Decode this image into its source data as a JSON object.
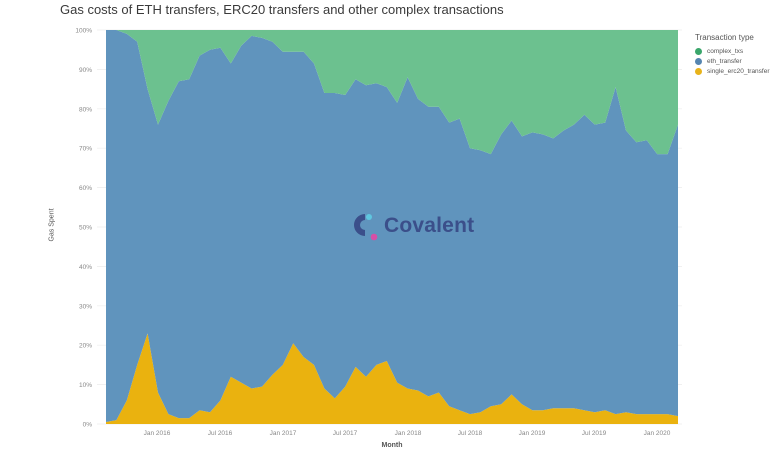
{
  "title": "Gas costs of ETH transfers, ERC20 transfers and other complex transactions",
  "legend": {
    "title": "Transaction type",
    "items": [
      {
        "label": "complex_txs",
        "color": "#6cc18f",
        "swatch": "#3aa66b"
      },
      {
        "label": "eth_transfer",
        "color": "#6094bd",
        "swatch": "#5585b0"
      },
      {
        "label": "single_erc20_transfer",
        "color": "#eab20f",
        "swatch": "#e8b31a"
      }
    ]
  },
  "watermark": {
    "text": "Covalent"
  },
  "chart_data": {
    "type": "area",
    "stacked": true,
    "normalized": true,
    "title": "Gas costs of ETH transfers, ERC20 transfers and other complex transactions",
    "xlabel": "Month",
    "ylabel": "Gas Spent",
    "ylim": [
      0,
      100
    ],
    "yticks": [
      "0%",
      "10%",
      "20%",
      "30%",
      "40%",
      "50%",
      "60%",
      "70%",
      "80%",
      "90%",
      "100%"
    ],
    "xticks": [
      "Jan 2016",
      "Jul 2016",
      "Jan 2017",
      "Jul 2017",
      "Jan 2018",
      "Jul 2018",
      "Jan 2019",
      "Jul 2019",
      "Jan 2020"
    ],
    "grid": true,
    "legend_position": "right",
    "x": [
      "2015-08",
      "2015-09",
      "2015-10",
      "2015-11",
      "2015-12",
      "2016-01",
      "2016-02",
      "2016-03",
      "2016-04",
      "2016-05",
      "2016-06",
      "2016-07",
      "2016-08",
      "2016-09",
      "2016-10",
      "2016-11",
      "2016-12",
      "2017-01",
      "2017-02",
      "2017-03",
      "2017-04",
      "2017-05",
      "2017-06",
      "2017-07",
      "2017-08",
      "2017-09",
      "2017-10",
      "2017-11",
      "2017-12",
      "2018-01",
      "2018-02",
      "2018-03",
      "2018-04",
      "2018-05",
      "2018-06",
      "2018-07",
      "2018-08",
      "2018-09",
      "2018-10",
      "2018-11",
      "2018-12",
      "2019-01",
      "2019-02",
      "2019-03",
      "2019-04",
      "2019-05",
      "2019-06",
      "2019-07",
      "2019-08",
      "2019-09",
      "2019-10",
      "2019-11",
      "2019-12",
      "2020-01",
      "2020-02",
      "2020-03"
    ],
    "series": [
      {
        "name": "single_erc20_transfer",
        "values": [
          0.5,
          1,
          6,
          15,
          23,
          8,
          2.5,
          1.5,
          1.5,
          3.5,
          3,
          6,
          12,
          10.5,
          9,
          9.5,
          12.5,
          15,
          20.5,
          17,
          15,
          9,
          6.5,
          9.5,
          14.5,
          12,
          15,
          16,
          10.5,
          9,
          8.5,
          7,
          8,
          4.5,
          3.5,
          2.5,
          3,
          4.5,
          5,
          7.5,
          5,
          3.5,
          3.5,
          4,
          4,
          4,
          3.5,
          3,
          3.5,
          2.5,
          3,
          2.5,
          2.5,
          2.5,
          2.5,
          2
        ]
      },
      {
        "name": "eth_transfer",
        "values": [
          99.5,
          99,
          93,
          82,
          62,
          68,
          79.5,
          85.5,
          86,
          90,
          92,
          89.5,
          79.5,
          85.5,
          89.5,
          88.5,
          84.5,
          79.5,
          74,
          77.5,
          76.5,
          75,
          77.5,
          74,
          73,
          74,
          71.5,
          69.5,
          71,
          79,
          74,
          73.5,
          72.5,
          72,
          74,
          67.5,
          66.5,
          64,
          68.5,
          69.5,
          68,
          70.5,
          70,
          68.5,
          70.5,
          72,
          75,
          73,
          73,
          83,
          71.5,
          69,
          69.5,
          66,
          66,
          74
        ]
      },
      {
        "name": "complex_txs",
        "values": [
          0,
          0,
          1,
          3,
          15,
          24,
          18,
          13,
          12.5,
          6.5,
          5,
          4.5,
          8.5,
          4,
          1.5,
          2,
          3,
          5.5,
          5.5,
          5.5,
          8.5,
          16,
          16,
          16.5,
          12.5,
          14,
          13.5,
          14.5,
          18.5,
          12,
          17.5,
          19.5,
          19.5,
          23.5,
          22.5,
          30,
          30.5,
          31.5,
          26.5,
          23,
          27,
          26,
          26.5,
          27.5,
          25.5,
          24,
          21.5,
          24,
          23.5,
          14.5,
          25.5,
          28.5,
          28,
          31.5,
          31.5,
          24
        ]
      }
    ]
  }
}
